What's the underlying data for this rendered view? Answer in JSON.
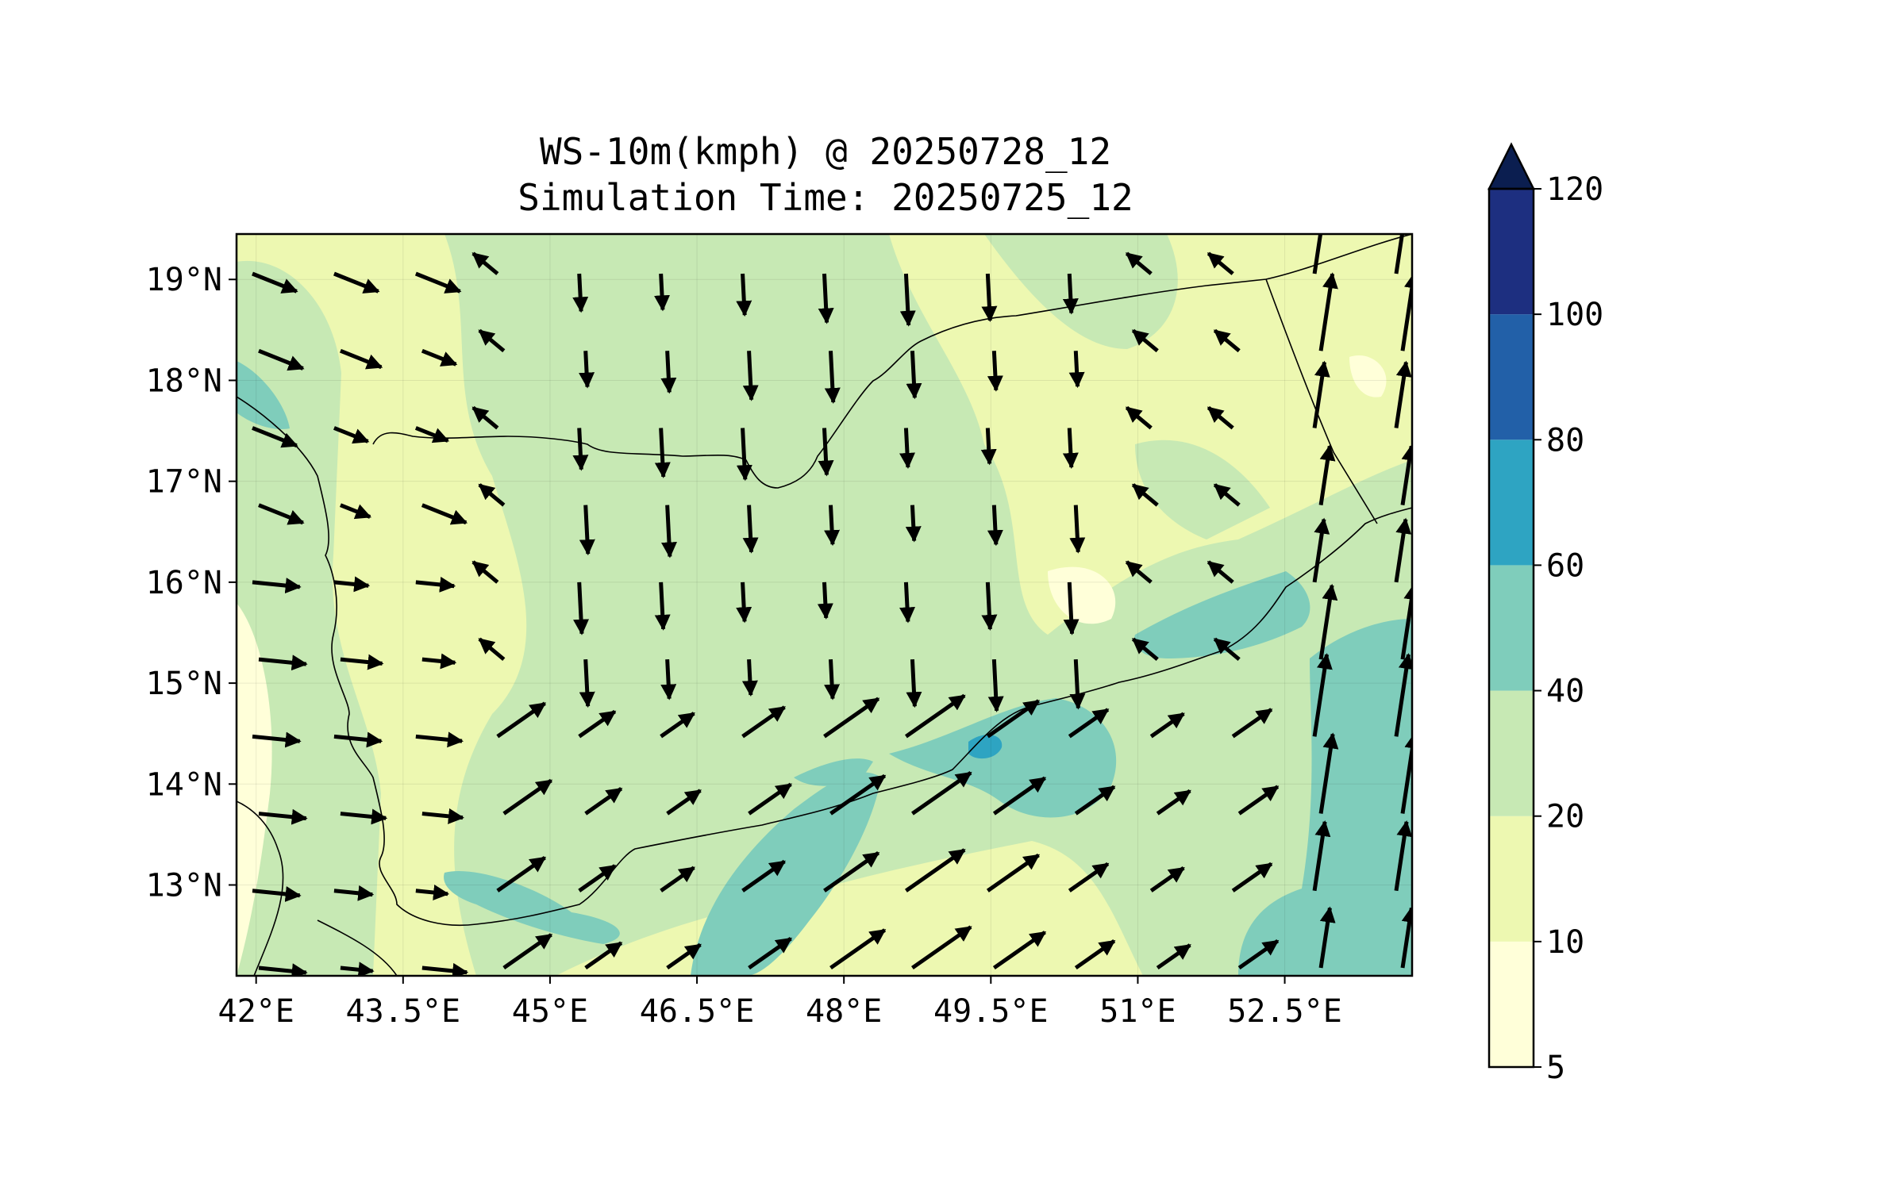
{
  "map": {
    "title": "WS-10m(kmph) @ 20250728_12",
    "subtitle": "Simulation Time: 20250725_12",
    "lon_range": [
      41.8,
      53.8
    ],
    "lat_range": [
      12.1,
      19.45
    ],
    "lon_ticks": [
      "42°E",
      "43.5°E",
      "45°E",
      "46.5°E",
      "48°E",
      "49.5°E",
      "51°E",
      "52.5°E"
    ],
    "lat_ticks": [
      "19°N",
      "18°N",
      "17°N",
      "16°N",
      "15°N",
      "14°N",
      "13°N"
    ],
    "colorbar": {
      "levels": [
        "5",
        "10",
        "20",
        "40",
        "60",
        "80",
        "100",
        "120"
      ],
      "colors": [
        "#ffffd9",
        "#edf8b1",
        "#c7e9b4",
        "#7fcdbb",
        "#2ea4c2",
        "#2260a8",
        "#1d2f80",
        "#0b1e50"
      ],
      "extend": "max"
    }
  }
}
